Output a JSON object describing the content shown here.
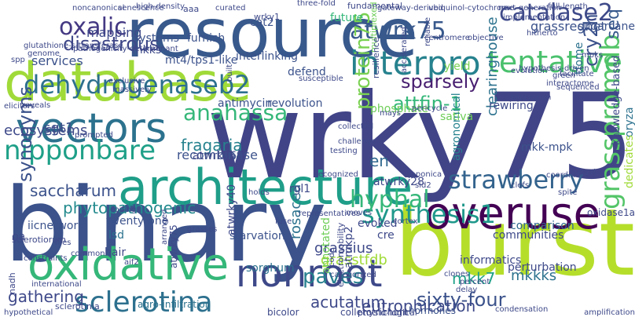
{
  "palette": {
    "dark_purple": "#440154",
    "indigo": "#3b528b",
    "blue": "#31688e",
    "teal": "#21918c",
    "green": "#35b779",
    "lime": "#6ece58",
    "yellow_green": "#b5de2b",
    "light_text": "#c7e020"
  },
  "words": [
    {
      "text": "wrky75",
      "color": "#414487"
    },
    {
      "text": "binary",
      "color": "#3b528b"
    },
    {
      "text": "resource",
      "color": "#38598c"
    },
    {
      "text": "burst",
      "color": "#b5de2b"
    },
    {
      "text": "database",
      "color": "#a0da39"
    },
    {
      "text": "architecture",
      "color": "#1f9e89"
    },
    {
      "text": "overuse",
      "color": "#440154"
    },
    {
      "text": "oxidative",
      "color": "#35b779"
    },
    {
      "text": "nonroot",
      "color": "#3e4989"
    },
    {
      "text": "vectors",
      "color": "#2c728e"
    },
    {
      "text": "interpro",
      "color": "#26828e"
    },
    {
      "text": "sclerotina",
      "color": "#2d708e"
    },
    {
      "text": "tentative",
      "color": "#4ac16d"
    },
    {
      "text": "catalase2",
      "color": "#3e4a89"
    },
    {
      "text": "dehydrogenaseb2",
      "color": "#2d708e"
    },
    {
      "text": "strawberry",
      "color": "#33638d"
    },
    {
      "text": "synthesis1",
      "color": "#1f988b"
    },
    {
      "text": "oxalic",
      "color": "#443983"
    },
    {
      "text": "nipponbare",
      "color": "#1fa088"
    },
    {
      "text": "atwrk75",
      "color": "#38598c"
    },
    {
      "text": "grasspromdb",
      "color": "#54c568"
    },
    {
      "text": "disastrous",
      "color": "#3f4788"
    },
    {
      "text": "synonyms",
      "color": "#3b528b"
    },
    {
      "text": "protein75",
      "color": "#7ad151"
    },
    {
      "text": "sixty-four",
      "color": "#3b528b"
    },
    {
      "text": "hyphal",
      "color": "#35b779"
    },
    {
      "text": "sparsely",
      "color": "#481f70"
    },
    {
      "text": "cry2h",
      "color": "#3b528b"
    },
    {
      "text": "paves",
      "color": "#27808e"
    },
    {
      "text": "attfin-1",
      "color": "#35b779"
    },
    {
      "text": "anahassa",
      "color": "#35b779"
    },
    {
      "text": "eutrophication",
      "color": "#3e4989"
    },
    {
      "text": "mkk7",
      "color": "#1fa188"
    },
    {
      "text": "seq",
      "color": "#38598c"
    },
    {
      "text": "saccharum",
      "color": "#3b528b"
    },
    {
      "text": "en",
      "color": "#31688e"
    },
    {
      "text": "grassregnet",
      "color": "#3b528b"
    },
    {
      "text": "clearinghouse",
      "color": "#2c728e"
    },
    {
      "text": "mkkks",
      "color": "#2c728e"
    },
    {
      "text": "grassius",
      "color": "#3e4989"
    },
    {
      "text": "rosacea",
      "color": "#2c728e"
    },
    {
      "text": "fragaria",
      "color": "#26828e"
    },
    {
      "text": "gathering",
      "color": "#3e4989"
    },
    {
      "text": "acutatum",
      "color": "#3e4989"
    },
    {
      "text": "grasstfdb",
      "color": "#a0da39"
    },
    {
      "text": "sgt1",
      "color": "#3b528b"
    },
    {
      "text": "phytopathogenic",
      "color": "#238a8d"
    },
    {
      "text": "ecosystems",
      "color": "#3e4989"
    },
    {
      "text": "recombinase",
      "color": "#3b528b"
    },
    {
      "text": "mapping",
      "color": "#3e4989"
    },
    {
      "text": "services",
      "color": "#3b528b"
    },
    {
      "text": "systems",
      "color": "#3b528b"
    },
    {
      "text": "mkks",
      "color": "#3e4989"
    },
    {
      "text": "mt4/tps1-like",
      "color": "#3b528b"
    },
    {
      "text": "interlinking",
      "color": "#3b528b"
    },
    {
      "text": "defend",
      "color": "#3b528b"
    },
    {
      "text": "furnish",
      "color": "#3b528b"
    },
    {
      "text": "yield",
      "color": "#7ad151"
    },
    {
      "text": "agronomical",
      "color": "#26828e"
    },
    {
      "text": "rewiring",
      "color": "#3e4989"
    },
    {
      "text": "tfome",
      "color": "#2c728e"
    },
    {
      "text": "cat2",
      "color": "#3b528b"
    },
    {
      "text": "future",
      "color": "#35b779"
    },
    {
      "text": "revolution",
      "color": "#3b528b"
    },
    {
      "text": "antimycin",
      "color": "#3b528b"
    },
    {
      "text": "lsd",
      "color": "#2c728e"
    },
    {
      "text": "hair",
      "color": "#3e4989"
    },
    {
      "text": "oa",
      "color": "#3e4989"
    },
    {
      "text": "iicnetwork",
      "color": "#3b528b"
    },
    {
      "text": "starvation",
      "color": "#3b528b"
    },
    {
      "text": "sorghum",
      "color": "#2c728e"
    },
    {
      "text": "atwrky40",
      "color": "#3e4989"
    },
    {
      "text": "atmkp2",
      "color": "#3e4989"
    },
    {
      "text": "evoked",
      "color": "#3e4989"
    },
    {
      "text": "annotated",
      "color": "#6ece58"
    },
    {
      "text": "perturbation",
      "color": "#3e4989"
    },
    {
      "text": "informatics",
      "color": "#3e4989"
    },
    {
      "text": "mkk-mpk",
      "color": "#3b528b"
    },
    {
      "text": "twenty-one",
      "color": "#3b528b"
    },
    {
      "text": "rgl1",
      "color": "#3e4989"
    },
    {
      "text": "cre",
      "color": "#3e4989"
    },
    {
      "text": "sativa",
      "color": "#6ece58"
    },
    {
      "text": "communities",
      "color": "#3e4989"
    },
    {
      "text": "comparison",
      "color": "#31688e"
    },
    {
      "text": "atwrky63",
      "color": "#3e4989"
    },
    {
      "text": "atwrky28",
      "color": "#3e4989"
    },
    {
      "text": "phosphate",
      "color": "#6ece58"
    },
    {
      "text": "sugarcane",
      "color": "#3b528b"
    },
    {
      "text": "oryza",
      "color": "#2c728e"
    },
    {
      "text": "knowledge-based",
      "color": "#3e4989"
    },
    {
      "text": "dedicates",
      "color": "#a0da39"
    },
    {
      "text": "oxidase1a",
      "color": "#3e4989"
    },
    {
      "text": "hormones",
      "color": "#3b528b"
    },
    {
      "text": "colletotrichum",
      "color": "#3e4989"
    },
    {
      "text": "bicolor",
      "color": "#3e4989"
    },
    {
      "text": "physio-logical",
      "color": "#3e4989"
    },
    {
      "text": "sclerotinia",
      "color": "#3e4989"
    },
    {
      "text": "nadh",
      "color": "#3e4989"
    },
    {
      "text": "agro-infiltration",
      "color": "#2c728e"
    },
    {
      "text": "atwrky75",
      "color": "#3e4989"
    },
    {
      "text": "electromobility",
      "color": "#3e4989"
    },
    {
      "text": "sclerotiorum",
      "color": "#3e4989"
    },
    {
      "text": "multiplexed",
      "color": "#6ece58"
    },
    {
      "text": "fundamental",
      "color": "#3e4989"
    },
    {
      "text": "resilience",
      "color": "#3e4989"
    },
    {
      "text": "wrky1",
      "color": "#3e4989"
    },
    {
      "text": "aaa",
      "color": "#3e4989"
    },
    {
      "text": "curated",
      "color": "#3e4989"
    },
    {
      "text": "three-fold",
      "color": "#3e4989"
    },
    {
      "text": "gateway-derived",
      "color": "#3e4989"
    },
    {
      "text": "ubiquinol-cytochrome",
      "color": "#3e4989"
    },
    {
      "text": "next-generation",
      "color": "#3e4989"
    },
    {
      "text": "full-length",
      "color": "#3e4989"
    },
    {
      "text": "high-density",
      "color": "#3e4989"
    },
    {
      "text": "senescence",
      "color": "#3e4989"
    },
    {
      "text": "noncanonical",
      "color": "#3e4989"
    },
    {
      "text": "glutathione-s-transferase",
      "color": "#3e4989"
    },
    {
      "text": "genome",
      "color": "#3e4989"
    },
    {
      "text": "pathogenicity-determinant",
      "color": "#3e4989"
    },
    {
      "text": "accelerated",
      "color": "#3e4989"
    },
    {
      "text": "reliable",
      "color": "#3e4989"
    },
    {
      "text": "implementation",
      "color": "#3e4989"
    },
    {
      "text": "hitherto",
      "color": "#3e4989"
    },
    {
      "text": "centromere",
      "color": "#3e4989"
    },
    {
      "text": "objective",
      "color": "#3e4989"
    },
    {
      "text": "evolution",
      "color": "#3e4989"
    },
    {
      "text": "hypothesis-driven",
      "color": "#3e4989"
    },
    {
      "text": "mpks",
      "color": "#3e4989"
    },
    {
      "text": "spp",
      "color": "#3e4989"
    },
    {
      "text": "susceptible",
      "color": "#3e4989"
    },
    {
      "text": "exclusive",
      "color": "#3e4989"
    },
    {
      "text": "massively",
      "color": "#3e4989"
    },
    {
      "text": "built",
      "color": "#3e4989"
    },
    {
      "text": "elicitors",
      "color": "#3e4989"
    },
    {
      "text": "reveals",
      "color": "#3e4989"
    },
    {
      "text": "interactome",
      "color": "#3e4989"
    },
    {
      "text": "green",
      "color": "#3e4989"
    },
    {
      "text": "facilitate",
      "color": "#3e4989"
    },
    {
      "text": "sequenced",
      "color": "#3e4989"
    },
    {
      "text": "triptychon",
      "color": "#3e4989"
    },
    {
      "text": "pericycle",
      "color": "#3e4989"
    },
    {
      "text": "mays",
      "color": "#3e4989"
    },
    {
      "text": "collected",
      "color": "#3e4989"
    },
    {
      "text": "challenge",
      "color": "#3e4989"
    },
    {
      "text": "prompted",
      "color": "#3e4989"
    },
    {
      "text": "testing",
      "color": "#3e4989"
    },
    {
      "text": "recognized",
      "color": "#3e4989"
    },
    {
      "text": "japonica",
      "color": "#3e4989"
    },
    {
      "text": "sid2",
      "color": "#3e4989"
    },
    {
      "text": "clefs",
      "color": "#3e4989"
    },
    {
      "text": "coordinate",
      "color": "#3e4989"
    },
    {
      "text": "spite",
      "color": "#3e4989"
    },
    {
      "text": "subset",
      "color": "#3e4989"
    },
    {
      "text": "holds",
      "color": "#3e4989"
    },
    {
      "text": "coping",
      "color": "#3e4989"
    },
    {
      "text": "representatives",
      "color": "#3e4989"
    },
    {
      "text": "fuse",
      "color": "#3e4989"
    },
    {
      "text": "grasses",
      "color": "#3e4989"
    },
    {
      "text": "cortex",
      "color": "#3e4989"
    },
    {
      "text": "moves",
      "color": "#3e4989"
    },
    {
      "text": "constraints",
      "color": "#3e4989"
    },
    {
      "text": "files",
      "color": "#3e4989"
    },
    {
      "text": "arranged",
      "color": "#3e4989"
    },
    {
      "text": "common",
      "color": "#3e4989"
    },
    {
      "text": "aif2",
      "color": "#3e4989"
    },
    {
      "text": "international",
      "color": "#3e4989"
    },
    {
      "text": "code",
      "color": "#3e4989"
    },
    {
      "text": "percent",
      "color": "#3e4989"
    },
    {
      "text": "clones",
      "color": "#3e4989"
    },
    {
      "text": "categorized",
      "color": "#3e4989"
    },
    {
      "text": "delay",
      "color": "#3e4989"
    },
    {
      "text": "amplification",
      "color": "#3e4989"
    },
    {
      "text": "hypothetical",
      "color": "#3e4989"
    },
    {
      "text": "condensation",
      "color": "#3e4989"
    }
  ]
}
